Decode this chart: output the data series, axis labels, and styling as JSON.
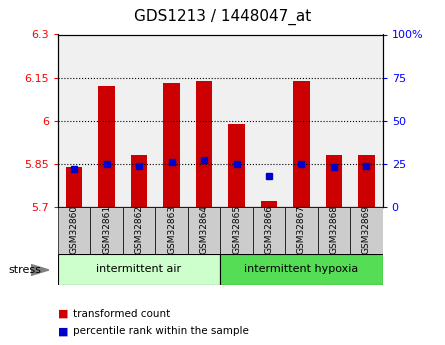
{
  "title": "GDS1213 / 1448047_at",
  "samples": [
    "GSM32860",
    "GSM32861",
    "GSM32862",
    "GSM32863",
    "GSM32864",
    "GSM32865",
    "GSM32866",
    "GSM32867",
    "GSM32868",
    "GSM32869"
  ],
  "bar_values": [
    5.84,
    6.12,
    5.88,
    6.13,
    6.14,
    5.99,
    5.72,
    6.14,
    5.88,
    5.88
  ],
  "bar_base": 5.7,
  "percentile_values": [
    22,
    25,
    24,
    26,
    27,
    25,
    18,
    25,
    23,
    24
  ],
  "ylim_left": [
    5.7,
    6.3
  ],
  "ylim_right": [
    0,
    100
  ],
  "yticks_left": [
    5.7,
    5.85,
    6.0,
    6.15,
    6.3
  ],
  "yticks_right": [
    0,
    25,
    50,
    75,
    100
  ],
  "ytick_labels_left": [
    "5.7",
    "5.85",
    "6",
    "6.15",
    "6.3"
  ],
  "ytick_labels_right": [
    "0",
    "25",
    "50",
    "75",
    "100%"
  ],
  "hlines": [
    5.85,
    6.0,
    6.15
  ],
  "bar_color": "#cc0000",
  "dot_color": "#0000cc",
  "group1_label": "intermittent air",
  "group2_label": "intermittent hypoxia",
  "group1_color": "#ccffcc",
  "group2_color": "#55dd55",
  "stress_label": "stress",
  "legend_bar_label": "transformed count",
  "legend_dot_label": "percentile rank within the sample",
  "tick_bg_color": "#cccccc",
  "plot_bg_color": "#f0f0f0"
}
